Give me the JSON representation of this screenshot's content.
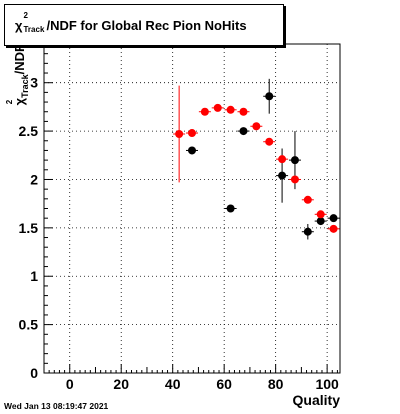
{
  "canvas": {
    "background": "#ffffff"
  },
  "title": {
    "prefix": "χ",
    "sup": "2",
    "sub": "Track",
    "suffix": "/NDF for Global Rec Pion NoHits"
  },
  "footer": {
    "timestamp": "Wed Jan 13 08:19:47 2021"
  },
  "chart_data": {
    "type": "scatter",
    "title": "χ²_Track/NDF for Global Rec Pion NoHits",
    "xlabel": "Quality",
    "ylabel": "χ²_Track/NDF",
    "xlim": [
      -10,
      105
    ],
    "ylim": [
      0,
      3.4
    ],
    "grid": true,
    "x_ticks": [
      0,
      20,
      40,
      60,
      80,
      100
    ],
    "y_ticks": [
      0,
      0.5,
      1,
      1.5,
      2,
      2.5,
      3
    ],
    "series": [
      {
        "color": "#000000",
        "points": [
          {
            "x": 47.5,
            "y": 2.3,
            "yerr": 0.04
          },
          {
            "x": 62.5,
            "y": 1.7,
            "yerr": 0.03
          },
          {
            "x": 67.5,
            "y": 2.5,
            "yerr": 0.03
          },
          {
            "x": 77.5,
            "y": 2.86,
            "yerr": 0.18
          },
          {
            "x": 82.5,
            "y": 2.04,
            "yerr": 0.28
          },
          {
            "x": 87.5,
            "y": 2.2,
            "yerr": 0.3
          },
          {
            "x": 92.5,
            "y": 1.46,
            "yerr": 0.08
          },
          {
            "x": 97.5,
            "y": 1.57,
            "yerr": 0.04
          },
          {
            "x": 102.5,
            "y": 1.6,
            "yerr": 0.03
          }
        ]
      },
      {
        "color": "#ff0000",
        "points": [
          {
            "x": 42.5,
            "y": 2.47,
            "yerr": 0.5
          },
          {
            "x": 47.5,
            "y": 2.48,
            "yerr": 0.04
          },
          {
            "x": 52.5,
            "y": 2.7,
            "yerr": 0.02
          },
          {
            "x": 57.5,
            "y": 2.74,
            "yerr": 0.02
          },
          {
            "x": 62.5,
            "y": 2.72,
            "yerr": 0.02
          },
          {
            "x": 67.5,
            "y": 2.7,
            "yerr": 0.02
          },
          {
            "x": 72.5,
            "y": 2.55,
            "yerr": 0.02
          },
          {
            "x": 77.5,
            "y": 2.39,
            "yerr": 0.02
          },
          {
            "x": 82.5,
            "y": 2.21,
            "yerr": 0.02
          },
          {
            "x": 87.5,
            "y": 2.0,
            "yerr": 0.03
          },
          {
            "x": 92.5,
            "y": 1.79,
            "yerr": 0.02
          },
          {
            "x": 97.5,
            "y": 1.64,
            "yerr": 0.02
          },
          {
            "x": 102.5,
            "y": 1.49,
            "yerr": 0.02
          }
        ]
      }
    ]
  }
}
